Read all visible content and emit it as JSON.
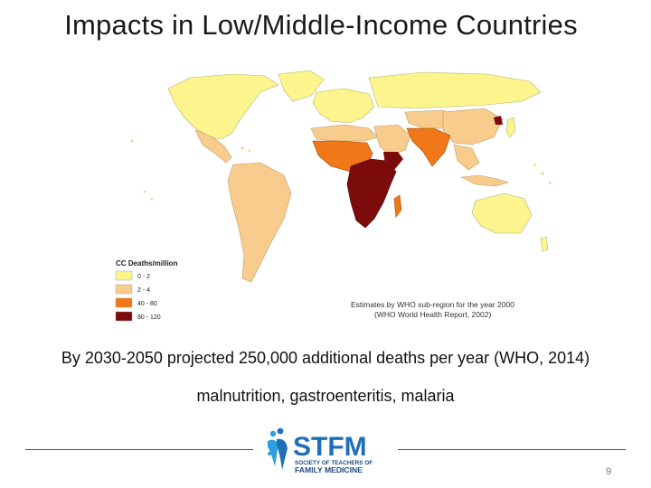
{
  "slide": {
    "title": "Impacts in Low/Middle-Income Countries",
    "projection_text": "By 2030-2050 projected 250,000 additional deaths per year (WHO, 2014)",
    "causes_text": "malnutrition, gastroenteritis, malaria",
    "page_number": "9"
  },
  "map": {
    "legend": {
      "title": "CC Deaths/million",
      "items": [
        {
          "label": "0 - 2",
          "color": "#fcf48c"
        },
        {
          "label": "2 - 4",
          "color": "#f8cc8c"
        },
        {
          "label": "40 - 80",
          "color": "#f07818"
        },
        {
          "label": "80 - 120",
          "color": "#7c0c0c"
        }
      ]
    },
    "note_line1": "Estimates by WHO sub-region for the year 2000",
    "note_line2": "(WHO World Health Report, 2002)"
  },
  "logo": {
    "acronym": "STFM",
    "subtitle_line1": "SOCIETY OF TEACHERS OF",
    "subtitle_line2": "FAMILY MEDICINE",
    "primary_color": "#1f6fb8",
    "accent_color": "#2f9ee0"
  }
}
